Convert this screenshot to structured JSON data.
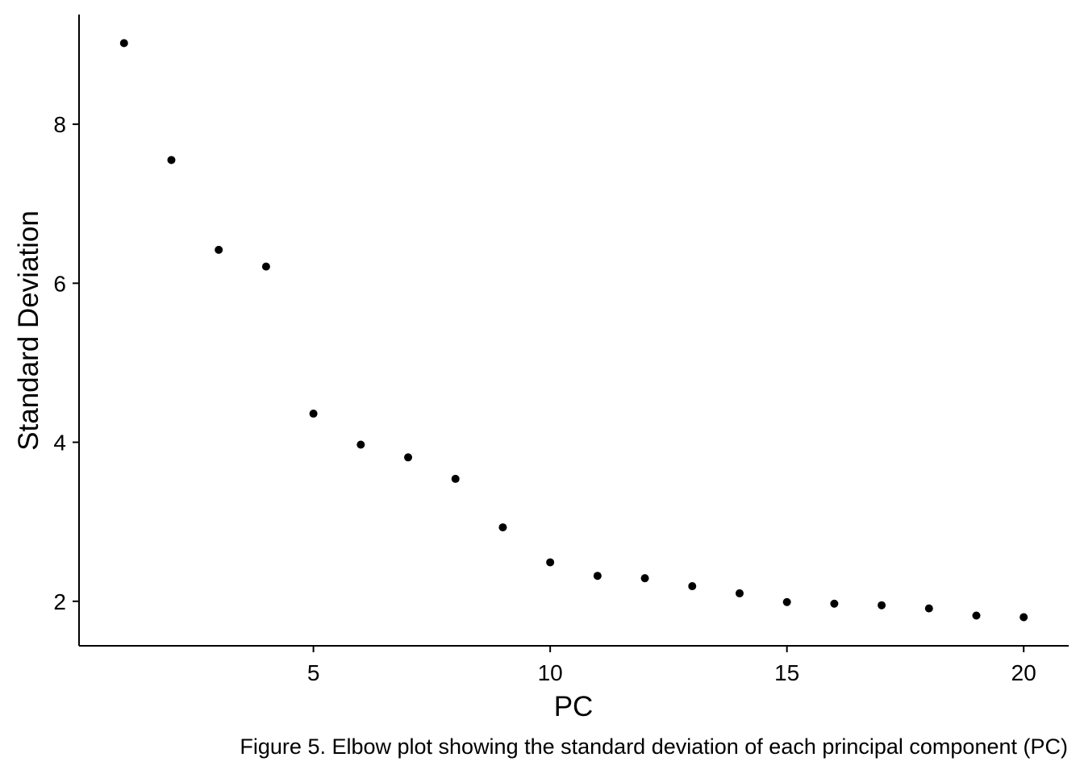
{
  "chart_data": {
    "type": "scatter",
    "xlabel": "PC",
    "ylabel": "Standard Deviation",
    "caption": "Figure 5. Elbow plot showing the standard deviation of each principal component (PC)",
    "x": [
      1,
      2,
      3,
      4,
      5,
      6,
      7,
      8,
      9,
      10,
      11,
      12,
      13,
      14,
      15,
      16,
      17,
      18,
      19,
      20
    ],
    "y": [
      9.02,
      7.55,
      6.42,
      6.21,
      4.36,
      3.97,
      3.81,
      3.54,
      2.93,
      2.49,
      2.32,
      2.29,
      2.19,
      2.1,
      1.99,
      1.97,
      1.95,
      1.91,
      1.82,
      1.8
    ],
    "xticks": [
      5,
      10,
      15,
      20
    ],
    "yticks": [
      2,
      4,
      6,
      8
    ],
    "xtick_labels": [
      "5",
      "10",
      "15",
      "20"
    ],
    "ytick_labels": [
      "2",
      "4",
      "6",
      "8"
    ],
    "xlim": [
      0.05,
      20.95
    ],
    "ylim": [
      1.44,
      9.38
    ],
    "grid": false,
    "legend": "none",
    "point_color": "#000000"
  }
}
